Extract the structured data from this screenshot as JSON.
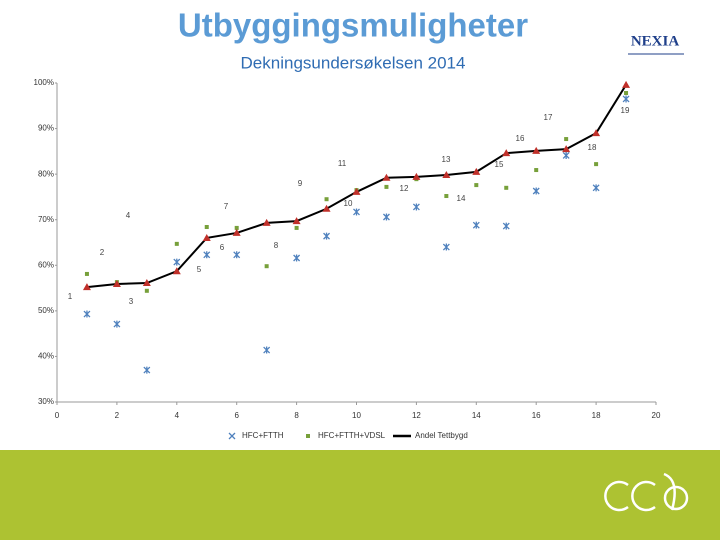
{
  "title": "Utbyggingsmuligheter",
  "logo": "NEXIA",
  "chart_data": {
    "type": "line",
    "subtitle": "Dekningsundersøkelsen 2014",
    "x": [
      1,
      2,
      3,
      4,
      5,
      6,
      7,
      8,
      9,
      10,
      11,
      12,
      13,
      14,
      15,
      16,
      17,
      18,
      19
    ],
    "series": [
      {
        "name": "HFC+FTTH",
        "color": "#4f81bd",
        "marker": "star",
        "line": false,
        "values": [
          49.3,
          47.1,
          37.0,
          60.7,
          62.3,
          62.3,
          41.4,
          61.6,
          66.4,
          71.7,
          70.6,
          72.8,
          64.0,
          68.8,
          68.6,
          76.3,
          84.1,
          77.0,
          96.5
        ]
      },
      {
        "name": "HFC+FTTH+VDSL",
        "color": "#77a03a",
        "marker": "square",
        "line": false,
        "values": [
          58.1,
          56.3,
          54.4,
          64.7,
          68.4,
          68.2,
          59.8,
          68.2,
          74.5,
          76.5,
          77.2,
          78.9,
          75.2,
          77.6,
          77.0,
          80.9,
          87.7,
          82.2,
          97.8
        ]
      },
      {
        "name": "Andel Tettbygd",
        "color": "#000000",
        "marker": "triangle",
        "marker_color": "#c0302a",
        "line": true,
        "values": [
          55.2,
          55.9,
          56.1,
          58.7,
          66.0,
          67.1,
          69.3,
          69.7,
          72.4,
          76.1,
          79.2,
          79.4,
          79.8,
          80.5,
          84.6,
          85.1,
          85.5,
          89.0,
          99.6
        ]
      }
    ],
    "xlim": [
      0,
      20
    ],
    "xticks": [
      0,
      2,
      4,
      6,
      8,
      10,
      12,
      14,
      16,
      18,
      20
    ],
    "ylim": [
      30,
      100
    ],
    "yticks": [
      {
        "value": 30,
        "label": "30%"
      },
      {
        "value": 40,
        "label": "40%"
      },
      {
        "value": 50,
        "label": "50%"
      },
      {
        "value": 60,
        "label": "60%"
      },
      {
        "value": 70,
        "label": "70%"
      },
      {
        "value": 80,
        "label": "80%"
      },
      {
        "value": 90,
        "label": "90%"
      },
      {
        "value": 100,
        "label": "100%"
      }
    ],
    "grid": false,
    "legend": "bottom"
  }
}
